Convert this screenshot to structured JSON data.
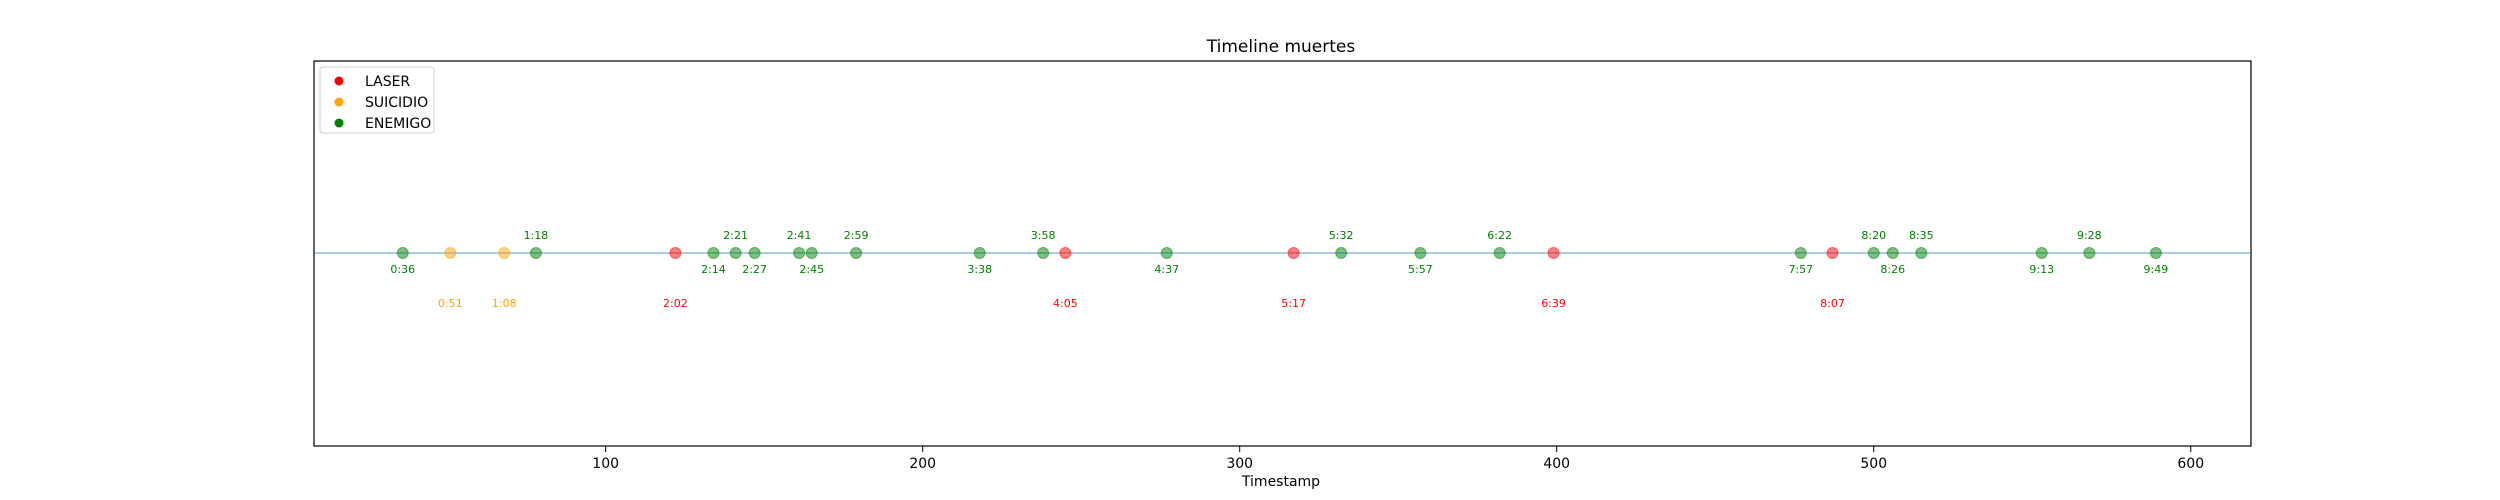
{
  "chart_data": {
    "type": "scatter",
    "title": "Timeline muertes",
    "xlabel": "Timestamp",
    "ylabel": "",
    "xlim": [
      8,
      619
    ],
    "xticks": [
      100,
      200,
      300,
      400,
      500,
      600
    ],
    "grid": false,
    "baseline_color": "#1f77b4",
    "legend_position": "top-left",
    "series": [
      {
        "name": "LASER",
        "color": "#ff0000",
        "points": [
          {
            "x": 122,
            "label": "2:02",
            "label_position": "below-far"
          },
          {
            "x": 245,
            "label": "4:05",
            "label_position": "below-far"
          },
          {
            "x": 317,
            "label": "5:17",
            "label_position": "below-far"
          },
          {
            "x": 399,
            "label": "6:39",
            "label_position": "below-far"
          },
          {
            "x": 487,
            "label": "8:07",
            "label_position": "below-far"
          }
        ]
      },
      {
        "name": "SUICIDIO",
        "color": "#ffa500",
        "points": [
          {
            "x": 51,
            "label": "0:51",
            "label_position": "below-far"
          },
          {
            "x": 68,
            "label": "1:08",
            "label_position": "below-far"
          }
        ]
      },
      {
        "name": "ENEMIGO",
        "color": "#008000",
        "points": [
          {
            "x": 36,
            "label": "0:36",
            "label_position": "below"
          },
          {
            "x": 78,
            "label": "1:18",
            "label_position": "above"
          },
          {
            "x": 134,
            "label": "2:14",
            "label_position": "below"
          },
          {
            "x": 141,
            "label": "2:21",
            "label_position": "above"
          },
          {
            "x": 147,
            "label": "2:27",
            "label_position": "below"
          },
          {
            "x": 161,
            "label": "2:41",
            "label_position": "above"
          },
          {
            "x": 165,
            "label": "2:45",
            "label_position": "below"
          },
          {
            "x": 179,
            "label": "2:59",
            "label_position": "above"
          },
          {
            "x": 218,
            "label": "3:38",
            "label_position": "below"
          },
          {
            "x": 238,
            "label": "3:58",
            "label_position": "above"
          },
          {
            "x": 277,
            "label": "4:37",
            "label_position": "below"
          },
          {
            "x": 332,
            "label": "5:32",
            "label_position": "above"
          },
          {
            "x": 357,
            "label": "5:57",
            "label_position": "below"
          },
          {
            "x": 382,
            "label": "6:22",
            "label_position": "above"
          },
          {
            "x": 477,
            "label": "7:57",
            "label_position": "below"
          },
          {
            "x": 500,
            "label": "8:20",
            "label_position": "above"
          },
          {
            "x": 506,
            "label": "8:26",
            "label_position": "below"
          },
          {
            "x": 515,
            "label": "8:35",
            "label_position": "above"
          },
          {
            "x": 553,
            "label": "9:13",
            "label_position": "below"
          },
          {
            "x": 568,
            "label": "9:28",
            "label_position": "above"
          },
          {
            "x": 589,
            "label": "9:49",
            "label_position": "below"
          }
        ]
      }
    ]
  }
}
